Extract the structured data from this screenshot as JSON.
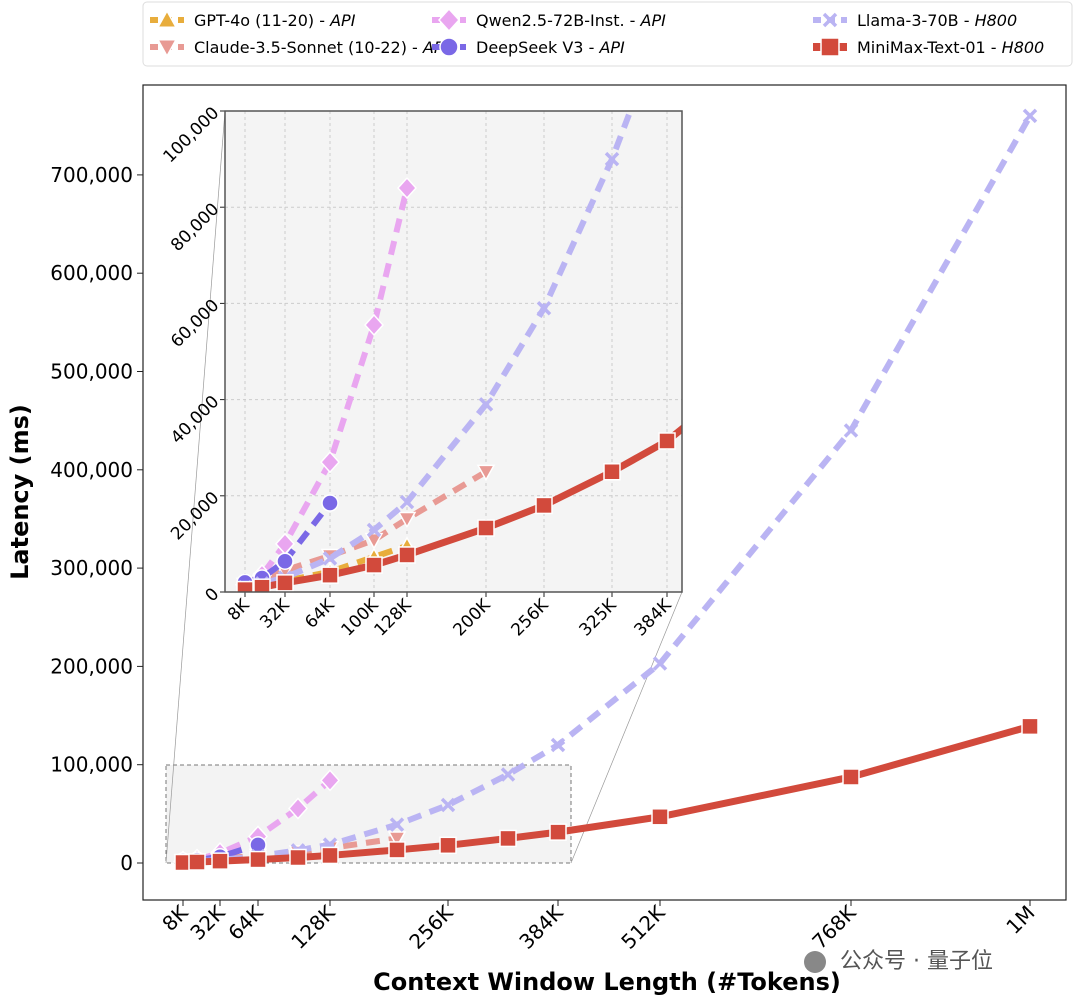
{
  "chart_data": {
    "type": "line",
    "xlabel": "Context Window Length (#Tokens)",
    "ylabel": "Latency (ms)",
    "main": {
      "xticks": [
        8,
        32,
        64,
        128,
        256,
        384,
        512,
        768,
        1024
      ],
      "xtick_labels": [
        "8K",
        "32K",
        "64K",
        "128K",
        "256K",
        "384K",
        "512K",
        "768K",
        "1M"
      ],
      "yticks": [
        0,
        100000,
        200000,
        300000,
        400000,
        500000,
        600000,
        700000
      ],
      "ytick_labels": [
        "0",
        "100,000",
        "200,000",
        "300,000",
        "400,000",
        "500,000",
        "600,000",
        "700,000"
      ],
      "ylim": [
        -35000,
        790000
      ]
    },
    "inset": {
      "xticks": [
        8,
        32,
        64,
        100,
        128,
        200,
        256,
        325,
        384
      ],
      "xtick_labels": [
        "8K",
        "32K",
        "64K",
        "100K",
        "128K",
        "200K",
        "256K",
        "325K",
        "384K"
      ],
      "yticks": [
        0,
        20000,
        40000,
        60000,
        80000,
        100000
      ],
      "ytick_labels": [
        "0",
        "20,000",
        "40,000",
        "60,000",
        "80,000",
        "100,000"
      ],
      "ylim": [
        0,
        100000
      ],
      "grid": true
    },
    "legend_position": "top",
    "series": [
      {
        "name": "GPT-4o (11-20)",
        "deploy": "API",
        "color": "#e8ad3c",
        "marker": "triangle-up",
        "dash": true,
        "x": [
          8,
          16,
          32,
          64,
          100,
          128
        ],
        "y": [
          1200,
          1500,
          2300,
          4200,
          7300,
          9600
        ]
      },
      {
        "name": "Claude-3.5-Sonnet (10-22)",
        "deploy": "API",
        "color": "#e89a94",
        "marker": "triangle-down",
        "dash": true,
        "x": [
          8,
          16,
          32,
          64,
          100,
          128,
          200
        ],
        "y": [
          1500,
          2500,
          4500,
          7500,
          10800,
          15200,
          25000
        ]
      },
      {
        "name": "Qwen2.5-72B-Inst.",
        "deploy": "API",
        "color": "#e9a6f0",
        "marker": "diamond",
        "dash": true,
        "x": [
          8,
          16,
          32,
          64,
          100,
          128
        ],
        "y": [
          1500,
          3500,
          10000,
          27000,
          55500,
          84000
        ]
      },
      {
        "name": "DeepSeek V3",
        "deploy": "API",
        "color": "#7a68e6",
        "marker": "circle",
        "dash": true,
        "x": [
          8,
          16,
          32,
          64
        ],
        "y": [
          2000,
          2900,
          6400,
          18500
        ]
      },
      {
        "name": "Llama-3-70B",
        "deploy": "H800",
        "color": "#bab4f3",
        "marker": "x",
        "dash": true,
        "x": [
          8,
          16,
          32,
          64,
          100,
          128,
          200,
          256,
          325,
          384,
          512,
          768,
          1024
        ],
        "y": [
          1000,
          1800,
          3000,
          7000,
          12900,
          18700,
          39000,
          59000,
          90000,
          120000,
          203000,
          440000,
          760000
        ]
      },
      {
        "name": "MiniMax-Text-01",
        "deploy": "H800",
        "color": "#d24a3c",
        "marker": "square",
        "dash": false,
        "x": [
          8,
          16,
          32,
          64,
          100,
          128,
          200,
          256,
          325,
          384,
          512,
          768,
          1024
        ],
        "y": [
          500,
          1000,
          1900,
          3500,
          5600,
          7700,
          13300,
          18000,
          25000,
          31400,
          47000,
          87500,
          139000
        ]
      }
    ]
  },
  "watermark": "公众号 · 量子位"
}
